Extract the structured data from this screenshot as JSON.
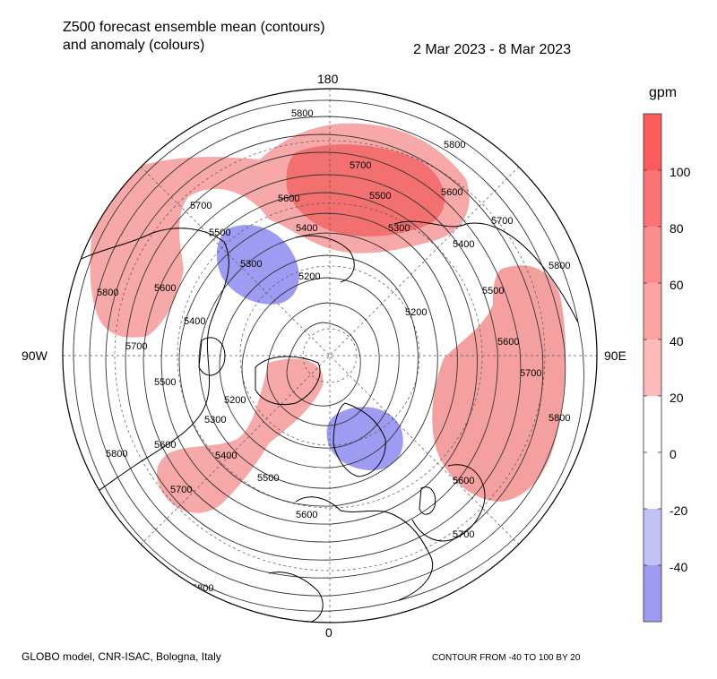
{
  "header": {
    "title_line1": "Z500 forecast ensemble mean (contours)",
    "title_line2": "and anomaly (colours)",
    "date_range": "2 Mar 2023 - 8 Mar 2023"
  },
  "map": {
    "lon_labels": {
      "top": "180",
      "left": "90W",
      "right": "90E",
      "bottom": "0"
    },
    "contour_labels": [
      "5800",
      "5800",
      "5700",
      "5700",
      "5600",
      "5600",
      "5500",
      "5500",
      "5400",
      "5400",
      "5300",
      "5300",
      "5200",
      "5200",
      "5600",
      "5700",
      "5800",
      "5400",
      "5500",
      "5600",
      "5700",
      "5800",
      "5300",
      "5400",
      "5200",
      "5500",
      "5600",
      "5700",
      "5800",
      "5700",
      "5800",
      "5500",
      "5600",
      "5800",
      "5700",
      "5600"
    ],
    "anomaly_positive_color": "#f28b8b",
    "anomaly_strong_color": "#ec5454",
    "anomaly_negative_color": "#9e9cf2"
  },
  "colorbar": {
    "unit": "gpm",
    "tick_labels": [
      "100",
      "80",
      "60",
      "40",
      "20",
      "0",
      "-20",
      "-40"
    ],
    "bins": [
      {
        "color": "#fa5c5c"
      },
      {
        "color": "#fb7373"
      },
      {
        "color": "#fc8b8b"
      },
      {
        "color": "#fda2a2"
      },
      {
        "color": "#feb9b9"
      },
      {
        "color": "#ffffff"
      },
      {
        "color": "#ffffff"
      },
      {
        "color": "#c3c2f7"
      },
      {
        "color": "#9e9cf2"
      }
    ]
  },
  "footer": {
    "left": "GLOBO model, CNR-ISAC, Bologna, Italy",
    "right": "CONTOUR FROM -40 TO 100 BY 20"
  }
}
